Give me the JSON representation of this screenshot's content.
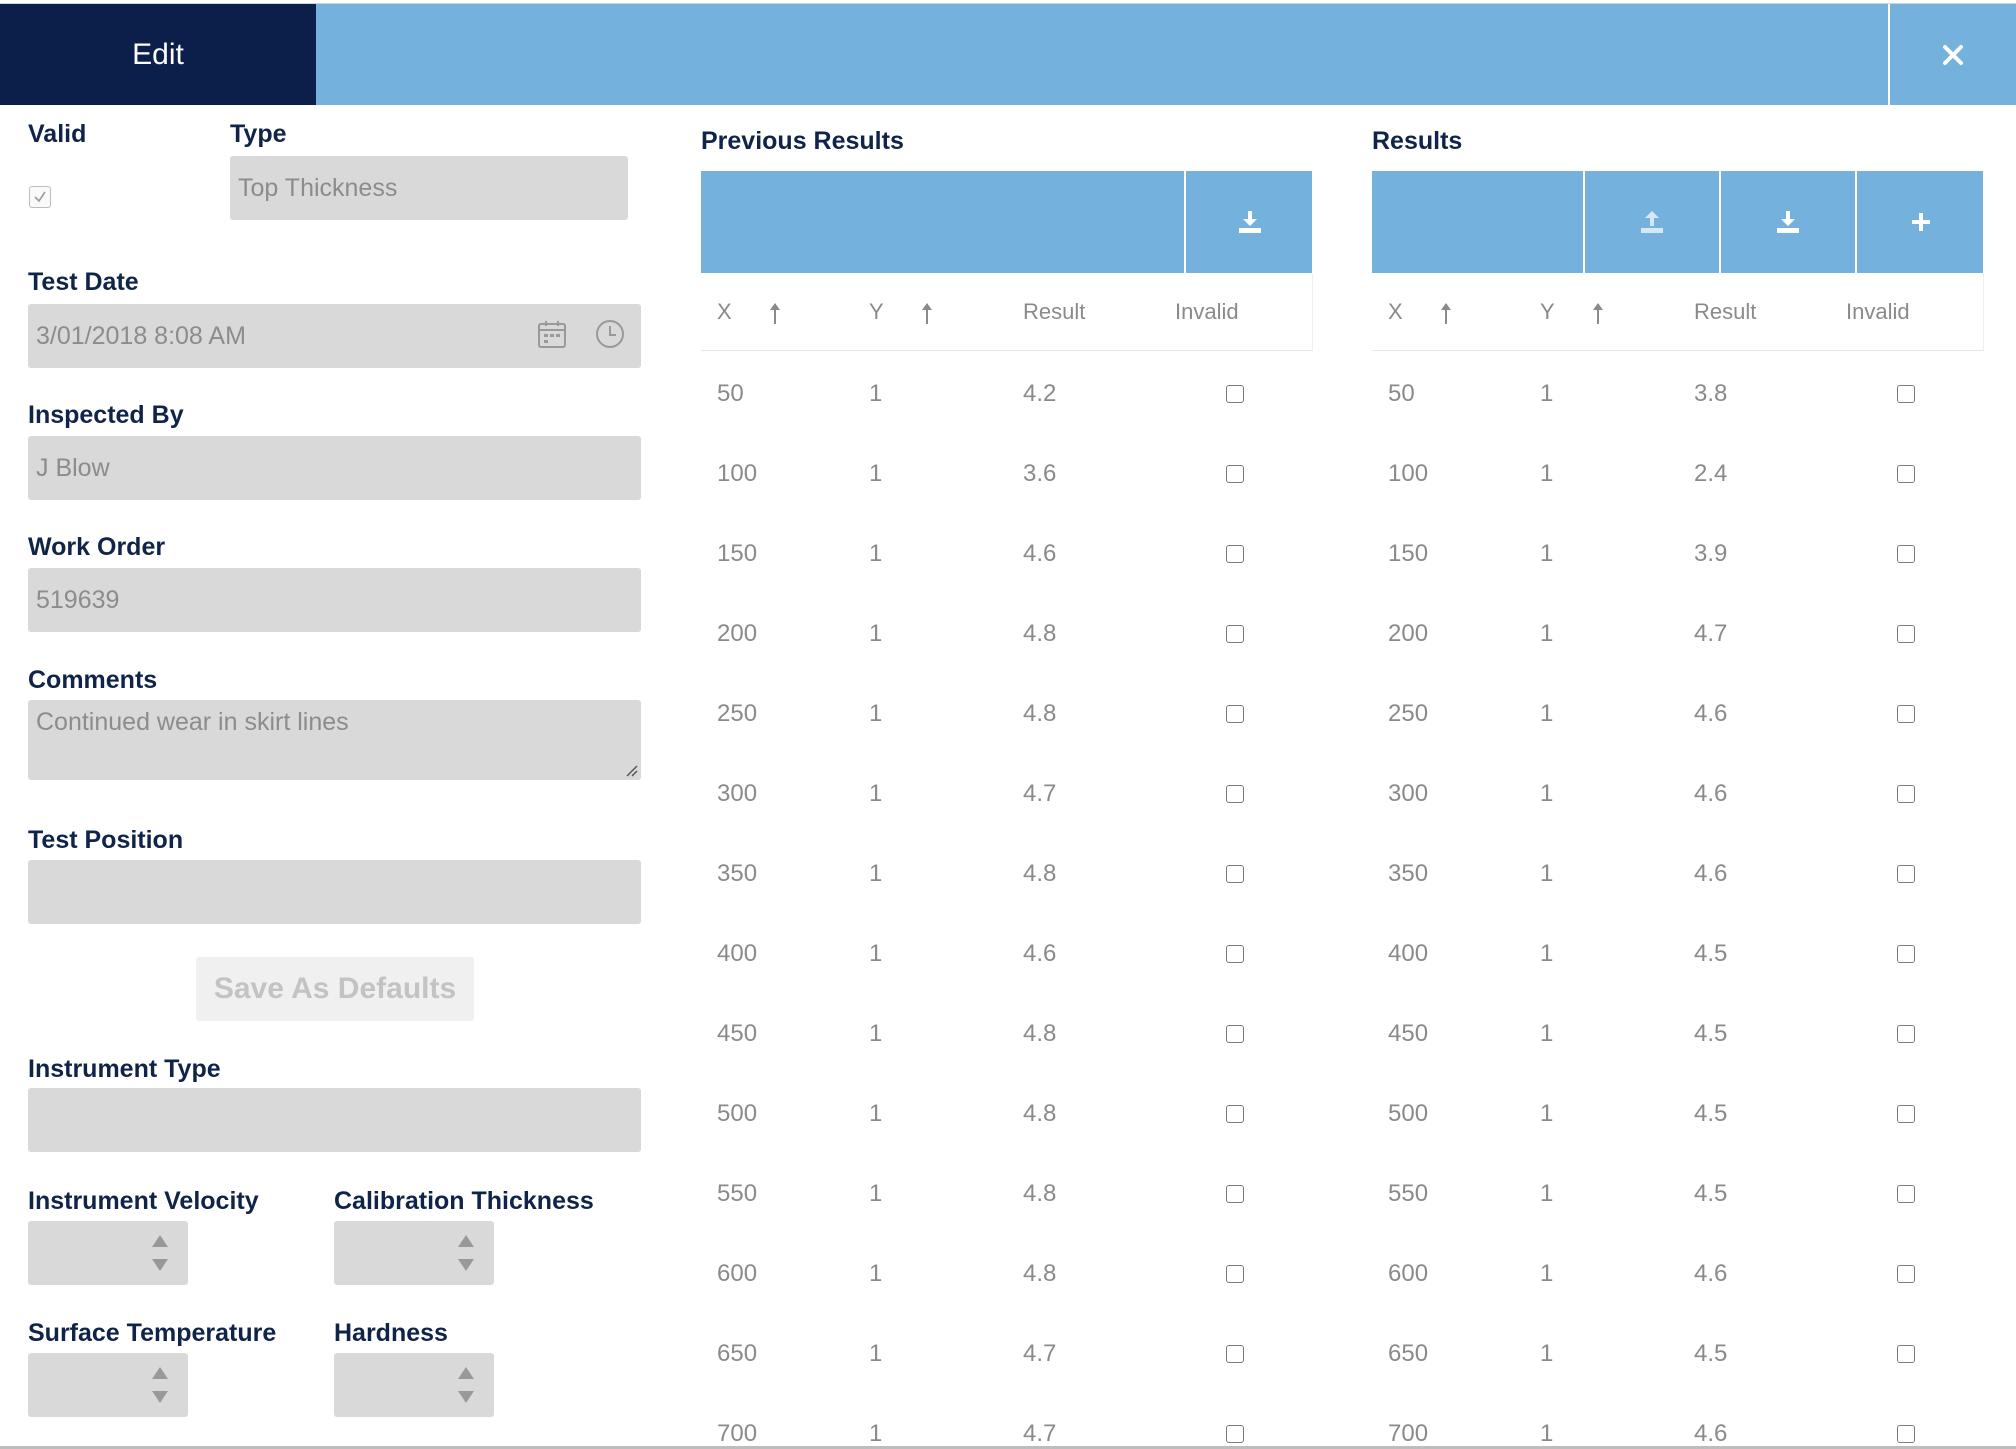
{
  "header": {
    "edit_label": "Edit",
    "close_icon": "close-icon"
  },
  "form": {
    "valid_label": "Valid",
    "valid_checked": true,
    "type_label": "Type",
    "type_value": "Top Thickness",
    "test_date_label": "Test Date",
    "test_date_value": "3/01/2018 8:08 AM",
    "inspected_by_label": "Inspected By",
    "inspected_by_value": "J Blow",
    "work_order_label": "Work Order",
    "work_order_value": "519639",
    "comments_label": "Comments",
    "comments_value": "Continued wear in skirt lines",
    "test_position_label": "Test Position",
    "test_position_value": "",
    "save_defaults_label": "Save As Defaults",
    "instrument_type_label": "Instrument Type",
    "instrument_type_value": "",
    "instrument_velocity_label": "Instrument Velocity",
    "calibration_thickness_label": "Calibration Thickness",
    "surface_temperature_label": "Surface Temperature",
    "hardness_label": "Hardness"
  },
  "previous_results": {
    "title": "Previous Results",
    "columns": [
      "X",
      "Y",
      "Result",
      "Invalid"
    ],
    "rows": [
      [
        "50",
        "1",
        "4.2"
      ],
      [
        "100",
        "1",
        "3.6"
      ],
      [
        "150",
        "1",
        "4.6"
      ],
      [
        "200",
        "1",
        "4.8"
      ],
      [
        "250",
        "1",
        "4.8"
      ],
      [
        "300",
        "1",
        "4.7"
      ],
      [
        "350",
        "1",
        "4.8"
      ],
      [
        "400",
        "1",
        "4.6"
      ],
      [
        "450",
        "1",
        "4.8"
      ],
      [
        "500",
        "1",
        "4.8"
      ],
      [
        "550",
        "1",
        "4.8"
      ],
      [
        "600",
        "1",
        "4.8"
      ],
      [
        "650",
        "1",
        "4.7"
      ],
      [
        "700",
        "1",
        "4.7"
      ]
    ]
  },
  "results": {
    "title": "Results",
    "columns": [
      "X",
      "Y",
      "Result",
      "Invalid"
    ],
    "rows": [
      [
        "50",
        "1",
        "3.8"
      ],
      [
        "100",
        "1",
        "2.4"
      ],
      [
        "150",
        "1",
        "3.9"
      ],
      [
        "200",
        "1",
        "4.7"
      ],
      [
        "250",
        "1",
        "4.6"
      ],
      [
        "300",
        "1",
        "4.6"
      ],
      [
        "350",
        "1",
        "4.6"
      ],
      [
        "400",
        "1",
        "4.5"
      ],
      [
        "450",
        "1",
        "4.5"
      ],
      [
        "500",
        "1",
        "4.5"
      ],
      [
        "550",
        "1",
        "4.5"
      ],
      [
        "600",
        "1",
        "4.6"
      ],
      [
        "650",
        "1",
        "4.5"
      ],
      [
        "700",
        "1",
        "4.6"
      ]
    ]
  },
  "colors": {
    "navy": "#0c1f4a",
    "accent": "#74b2dd",
    "field": "#d9d9d9"
  }
}
